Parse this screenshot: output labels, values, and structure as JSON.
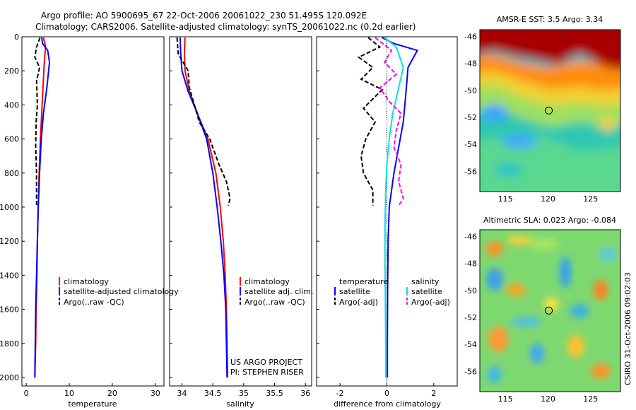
{
  "header": {
    "line1": "Argo profile: AO 5900695_67 22-Oct-2006 20061022_230 51.495S 120.092E",
    "line2": "Climatology: CARS2006. Satellite-adjusted climatology: synTS_20061022.nc (0.2d earlier)"
  },
  "colors": {
    "climatology": "#ff0000",
    "satellite": "#0000ff",
    "argo": "#000000",
    "sat_diff_t": "#0000ff",
    "sat_diff_s": "#00e5e5",
    "argo_adj_s": "#ff00ff"
  },
  "chart_data": [
    {
      "type": "line",
      "id": "temperature",
      "xlabel": "temperature",
      "xlim": [
        -1,
        32
      ],
      "ylim": [
        2050,
        0
      ],
      "xticks": [
        "0",
        "10",
        "20",
        "30"
      ],
      "xtick_values": [
        0,
        10,
        20,
        30
      ],
      "yticks": [
        "0",
        "200",
        "400",
        "600",
        "800",
        "1000",
        "1200",
        "1400",
        "1600",
        "1800",
        "2000"
      ],
      "ytick_values": [
        0,
        200,
        400,
        600,
        800,
        1000,
        1200,
        1400,
        1600,
        1800,
        2000
      ],
      "legend": [
        "climatology",
        "satellite-adjusted climatology",
        "Argo(..raw -QC)"
      ],
      "series": [
        {
          "name": "climatology",
          "style": "solid",
          "color": "#ff0000",
          "x": [
            4.0,
            4.5,
            4.2,
            3.9,
            3.6,
            3.3,
            3.0,
            2.8,
            2.6,
            2.5,
            2.3,
            2.2,
            2.1,
            2.0
          ],
          "y": [
            5,
            60,
            150,
            300,
            450,
            600,
            800,
            1000,
            1200,
            1400,
            1600,
            1800,
            1900,
            2000
          ]
        },
        {
          "name": "satellite-adjusted climatology",
          "style": "solid",
          "color": "#0000ff",
          "x": [
            3.6,
            3.8,
            5.0,
            5.4,
            4.8,
            4.0,
            3.5,
            3.1,
            2.8,
            2.6,
            2.4,
            2.2,
            2.1,
            2.0
          ],
          "y": [
            5,
            40,
            80,
            150,
            300,
            450,
            600,
            800,
            1000,
            1200,
            1400,
            1600,
            1800,
            2000
          ]
        },
        {
          "name": "Argo(..raw -QC)",
          "style": "dashed",
          "color": "#000000",
          "x": [
            3.2,
            2.4,
            2.0,
            3.1,
            2.4,
            2.6,
            2.3,
            2.2,
            2.4,
            2.4
          ],
          "y": [
            5,
            60,
            120,
            180,
            260,
            400,
            500,
            650,
            800,
            990
          ]
        }
      ]
    },
    {
      "type": "line",
      "id": "salinity",
      "xlabel": "salinity",
      "xlim": [
        33.8,
        36.1
      ],
      "ylim": [
        2050,
        0
      ],
      "xticks": [
        "34",
        "34.5",
        "35",
        "35.5",
        "36"
      ],
      "xtick_values": [
        34,
        34.5,
        35,
        35.5,
        36
      ],
      "legend": [
        "climatology",
        "satellite adj. clim.",
        "Argo(..raw -QC)"
      ],
      "annotation": [
        "US ARGO PROJECT",
        "PI: STEPHEN RISER"
      ],
      "series": [
        {
          "name": "climatology",
          "style": "solid",
          "color": "#ff0000",
          "x": [
            34.05,
            34.04,
            34.05,
            34.12,
            34.25,
            34.42,
            34.55,
            34.62,
            34.67,
            34.7,
            34.72,
            34.73,
            34.74
          ],
          "y": [
            5,
            100,
            200,
            320,
            450,
            600,
            800,
            1000,
            1200,
            1400,
            1600,
            1800,
            2000
          ]
        },
        {
          "name": "satellite adj. clim.",
          "style": "solid",
          "color": "#0000ff",
          "x": [
            33.97,
            33.98,
            34.0,
            34.1,
            34.25,
            34.4,
            34.5,
            34.57,
            34.63,
            34.68,
            34.71,
            34.72,
            34.73
          ],
          "y": [
            5,
            100,
            200,
            320,
            450,
            600,
            800,
            1000,
            1200,
            1400,
            1600,
            1800,
            2000
          ]
        },
        {
          "name": "Argo(..raw -QC)",
          "style": "dashed",
          "color": "#000000",
          "x": [
            33.92,
            33.94,
            34.1,
            34.12,
            34.2,
            34.28,
            34.45,
            34.6,
            34.72,
            34.78,
            34.75
          ],
          "y": [
            5,
            100,
            200,
            300,
            400,
            500,
            600,
            750,
            850,
            950,
            990
          ]
        }
      ]
    },
    {
      "type": "line",
      "id": "difference",
      "xlabel": "difference from climatology",
      "xlim": [
        -3,
        3
      ],
      "ylim": [
        2050,
        0
      ],
      "xticks": [
        "-2",
        "0",
        "2"
      ],
      "xtick_values": [
        -2,
        0,
        2
      ],
      "legend_left_title": "temperature",
      "legend_right_title": "salinity",
      "legend_left": [
        "satellite",
        "Argo(-adj)"
      ],
      "legend_right": [
        "satellite",
        "Argo(-adj)"
      ],
      "series": [
        {
          "name": "temperature satellite",
          "style": "solid",
          "color": "#0000ff",
          "x": [
            -0.2,
            0.3,
            1.3,
            0.9,
            0.8,
            0.7,
            0.5,
            0.3,
            0.1,
            0.05,
            0.03,
            0.02,
            0.02
          ],
          "y": [
            5,
            40,
            80,
            180,
            350,
            500,
            650,
            800,
            1000,
            1200,
            1500,
            1800,
            2000
          ]
        },
        {
          "name": "temperature Argo(-adj)",
          "style": "dashed",
          "color": "#000000",
          "x": [
            -0.8,
            -0.3,
            -1.2,
            -0.6,
            -1.1,
            -0.2,
            -1.0,
            -0.5,
            -0.9,
            -1.1,
            -1.0,
            -0.6,
            -0.6
          ],
          "y": [
            5,
            60,
            120,
            180,
            250,
            310,
            420,
            500,
            600,
            700,
            800,
            900,
            990
          ]
        },
        {
          "name": "salinity satellite",
          "style": "solid",
          "color": "#00e5e5",
          "x": [
            -0.1,
            0.4,
            0.7,
            0.5,
            0.25,
            0.1,
            0.0,
            -0.05,
            -0.08,
            -0.08,
            -0.07,
            -0.05,
            -0.05
          ],
          "y": [
            5,
            60,
            180,
            300,
            450,
            600,
            750,
            900,
            1100,
            1300,
            1500,
            1800,
            2000
          ]
        },
        {
          "name": "salinity Argo(-adj)",
          "style": "dashed",
          "color": "#ff00ff",
          "x": [
            -0.5,
            0.2,
            -0.1,
            0.4,
            -0.3,
            0.1,
            0.6,
            0.4,
            0.3,
            0.6,
            0.5,
            0.7,
            0.5
          ],
          "y": [
            5,
            80,
            150,
            220,
            300,
            380,
            450,
            550,
            650,
            750,
            850,
            950,
            990
          ]
        }
      ]
    },
    {
      "type": "heatmap",
      "id": "sst_map",
      "title": "AMSR-E SST: 3.5 Argo: 3.34",
      "xticks": [
        "115",
        "120",
        "125"
      ],
      "xtick_values": [
        115,
        120,
        125
      ],
      "yticks": [
        "-46",
        "-48",
        "-50",
        "-52",
        "-54",
        "-56"
      ],
      "ytick_values": [
        -46,
        -48,
        -50,
        -52,
        -54,
        -56
      ],
      "xlim": [
        112,
        128.5
      ],
      "ylim": [
        -57.5,
        -45.5
      ],
      "marker": {
        "lon": 120.092,
        "lat": -51.495
      }
    },
    {
      "type": "heatmap",
      "id": "sla_map",
      "title": "Altimetric SLA: 0.023 Argo: -0.084",
      "xticks": [
        "115",
        "120",
        "125"
      ],
      "xtick_values": [
        115,
        120,
        125
      ],
      "yticks": [
        "-46",
        "-48",
        "-50",
        "-52",
        "-54",
        "-56"
      ],
      "ytick_values": [
        -46,
        -48,
        -50,
        -52,
        -54,
        -56
      ],
      "xlim": [
        112,
        128.5
      ],
      "ylim": [
        -57.5,
        -45.5
      ],
      "marker": {
        "lon": 120.092,
        "lat": -51.495
      }
    }
  ],
  "footer": {
    "vertical_text": "CSIRO 31-Oct-2006 09:02:03"
  }
}
